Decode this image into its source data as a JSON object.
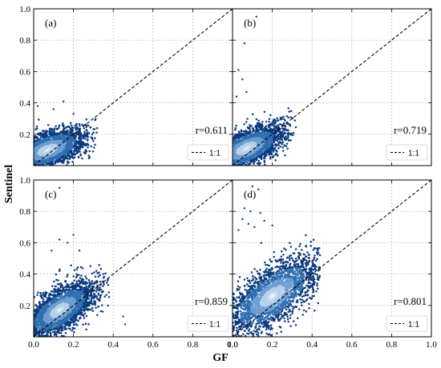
{
  "figure": {
    "xlabel": "GF",
    "ylabel": "Sentinel",
    "colors": {
      "density_low": "#0b3a7e",
      "density_mid": "#2f6fb0",
      "density_high": "#ffffff",
      "line": "#000000",
      "grid": "#b8b8b8"
    }
  },
  "chart_data": [
    {
      "type": "scatter",
      "panel_label": "(a)",
      "annotation": "r=0.611",
      "legend": {
        "entries": [
          "1:1"
        ],
        "placement": "lower-right"
      },
      "xlim": [
        0,
        1
      ],
      "ylim": [
        0,
        1
      ],
      "xticks": [
        "0.0",
        "0.2",
        "0.4",
        "0.6",
        "0.8",
        "1.0"
      ],
      "yticks": [
        "0.2",
        "0.4",
        "0.6",
        "0.8",
        "1.0"
      ],
      "show_xticks": false,
      "show_yticks": true,
      "grid": true,
      "reference_line": {
        "x": [
          0,
          1
        ],
        "y": [
          0,
          1
        ]
      },
      "cloud": {
        "center": [
          0.07,
          0.1
        ],
        "spread": [
          0.13,
          0.09
        ],
        "rho": 0.55,
        "x_range": [
          0,
          0.32
        ],
        "y_range": [
          0,
          0.31
        ]
      },
      "outliers": [
        [
          0.15,
          0.41
        ],
        [
          0.02,
          0.38
        ],
        [
          0.2,
          0.33
        ],
        [
          0.27,
          0.2
        ],
        [
          0.1,
          0.36
        ]
      ]
    },
    {
      "type": "scatter",
      "panel_label": "(b)",
      "annotation": "r=0.719",
      "legend": {
        "entries": [
          "1:1"
        ],
        "placement": "lower-right"
      },
      "xlim": [
        0,
        1
      ],
      "ylim": [
        0,
        1
      ],
      "xticks": [
        "0.0",
        "0.2",
        "0.4",
        "0.6",
        "0.8",
        "1.0"
      ],
      "yticks": [
        "0.2",
        "0.4",
        "0.6",
        "0.8",
        "1.0"
      ],
      "show_xticks": false,
      "show_yticks": false,
      "grid": true,
      "reference_line": {
        "x": [
          0,
          1
        ],
        "y": [
          0,
          1
        ]
      },
      "cloud": {
        "center": [
          0.07,
          0.11
        ],
        "spread": [
          0.13,
          0.1
        ],
        "rho": 0.62,
        "x_range": [
          0,
          0.32
        ],
        "y_range": [
          0,
          0.4
        ]
      },
      "outliers": [
        [
          0.12,
          0.95
        ],
        [
          0.06,
          0.78
        ],
        [
          0.03,
          0.61
        ],
        [
          0.05,
          0.55
        ],
        [
          0.07,
          0.47
        ],
        [
          0.02,
          0.44
        ],
        [
          0.25,
          0.3
        ]
      ]
    },
    {
      "type": "scatter",
      "panel_label": "(c)",
      "annotation": "r=0.859",
      "legend": {
        "entries": [
          "1:1"
        ],
        "placement": "lower-right"
      },
      "xlim": [
        0,
        1
      ],
      "ylim": [
        0,
        1
      ],
      "xticks": [
        "0.0",
        "0.2",
        "0.4",
        "0.6",
        "0.8",
        "1.0"
      ],
      "yticks": [
        "0.2",
        "0.4",
        "0.6",
        "0.8",
        "1.0"
      ],
      "show_xticks": true,
      "show_yticks": true,
      "grid": true,
      "reference_line": {
        "x": [
          0,
          1
        ],
        "y": [
          0,
          1
        ]
      },
      "cloud": {
        "center": [
          0.13,
          0.17
        ],
        "spread": [
          0.12,
          0.12
        ],
        "rho": 0.65,
        "x_range": [
          0,
          0.38
        ],
        "y_range": [
          0,
          0.52
        ]
      },
      "outliers": [
        [
          0.13,
          0.95
        ],
        [
          0.2,
          0.65
        ],
        [
          0.13,
          0.62
        ],
        [
          0.17,
          0.6
        ],
        [
          0.09,
          0.55
        ],
        [
          0.23,
          0.55
        ],
        [
          0.45,
          0.13
        ],
        [
          0.46,
          0.08
        ],
        [
          0.35,
          0.4
        ]
      ]
    },
    {
      "type": "scatter",
      "panel_label": "(d)",
      "annotation": "r=0.801",
      "legend": {
        "entries": [
          "1:1"
        ],
        "placement": "lower-right"
      },
      "xlim": [
        0,
        1
      ],
      "ylim": [
        0,
        1
      ],
      "xticks": [
        "0.0",
        "0.2",
        "0.4",
        "0.6",
        "0.8",
        "1.0"
      ],
      "yticks": [
        "0.2",
        "0.4",
        "0.6",
        "0.8",
        "1.0"
      ],
      "show_xticks": true,
      "show_yticks": false,
      "grid": true,
      "reference_line": {
        "x": [
          0,
          1
        ],
        "y": [
          0,
          1
        ]
      },
      "cloud": {
        "center": [
          0.2,
          0.26
        ],
        "spread": [
          0.16,
          0.17
        ],
        "rho": 0.68,
        "x_range": [
          0,
          0.44
        ],
        "y_range": [
          0,
          0.66
        ]
      },
      "outliers": [
        [
          0.1,
          0.96
        ],
        [
          0.13,
          0.94
        ],
        [
          0.06,
          0.82
        ],
        [
          0.09,
          0.8
        ],
        [
          0.14,
          0.79
        ],
        [
          0.05,
          0.75
        ],
        [
          0.16,
          0.74
        ],
        [
          0.11,
          0.7
        ],
        [
          0.08,
          0.72
        ],
        [
          0.2,
          0.71
        ],
        [
          0.03,
          0.68
        ]
      ]
    }
  ]
}
